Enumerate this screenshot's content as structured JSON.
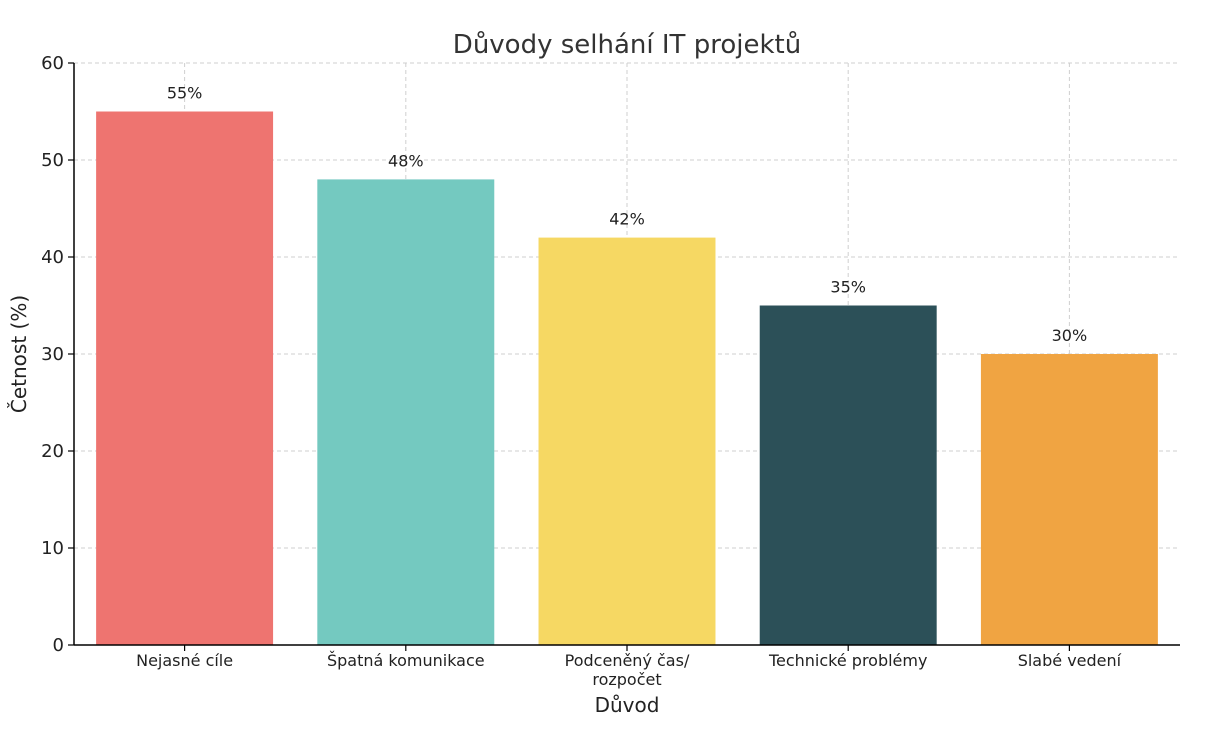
{
  "chart_data": {
    "type": "bar",
    "title": "Důvody selhání IT projektů",
    "xlabel": "Důvod",
    "ylabel": "Četnost (%)",
    "categories": [
      [
        "Nejasné cíle"
      ],
      [
        "Špatná komunikace"
      ],
      [
        "Podceněný čas/",
        "rozpočet"
      ],
      [
        "Technické problémy"
      ],
      [
        "Slabé vedení"
      ]
    ],
    "values": [
      55,
      48,
      42,
      35,
      30
    ],
    "data_labels": [
      "55%",
      "48%",
      "42%",
      "35%",
      "30%"
    ],
    "colors": [
      "#ee7470",
      "#74c9c0",
      "#f6d863",
      "#2c5058",
      "#f0a442"
    ],
    "ylim": [
      0,
      60
    ],
    "yticks": [
      0,
      10,
      20,
      30,
      40,
      50,
      60
    ],
    "grid": true
  }
}
